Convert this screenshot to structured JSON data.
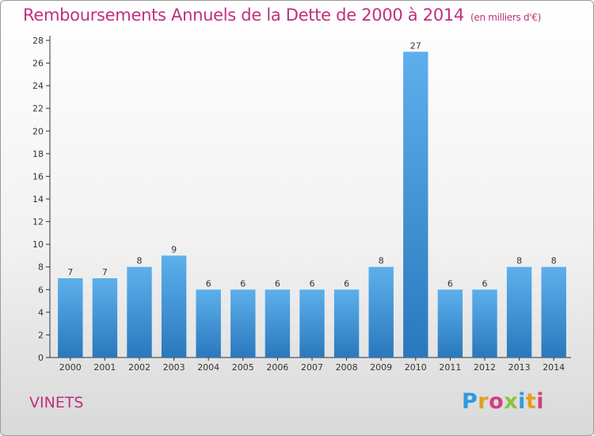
{
  "header": {
    "title": "Remboursements Annuels de la Dette de 2000 à 2014",
    "unit": "(en milliers d'€)"
  },
  "footer": {
    "commune": "VINETS",
    "logo_letters": [
      "P",
      "r",
      "o",
      "x",
      "i",
      "t",
      "i"
    ],
    "logo_colors": [
      "#2e9be0",
      "#e0a020",
      "#d04080",
      "#8cc43c",
      "#2e9be0",
      "#e0a020",
      "#d04080"
    ]
  },
  "colors": {
    "bar": "#4a9ee0",
    "bar_dark": "#2f7fc4",
    "accent": "#c0307a"
  },
  "chart_data": {
    "type": "bar",
    "categories": [
      "2000",
      "2001",
      "2002",
      "2003",
      "2004",
      "2005",
      "2006",
      "2007",
      "2008",
      "2009",
      "2010",
      "2011",
      "2012",
      "2013",
      "2014"
    ],
    "values": [
      7,
      7,
      8,
      9,
      6,
      6,
      6,
      6,
      6,
      8,
      27,
      6,
      6,
      8,
      8
    ],
    "ylim": [
      0,
      28
    ],
    "yticks": [
      0,
      2,
      4,
      6,
      8,
      10,
      12,
      14,
      16,
      18,
      20,
      22,
      24,
      26,
      28
    ],
    "grid": false,
    "xlabel": "",
    "ylabel": ""
  }
}
